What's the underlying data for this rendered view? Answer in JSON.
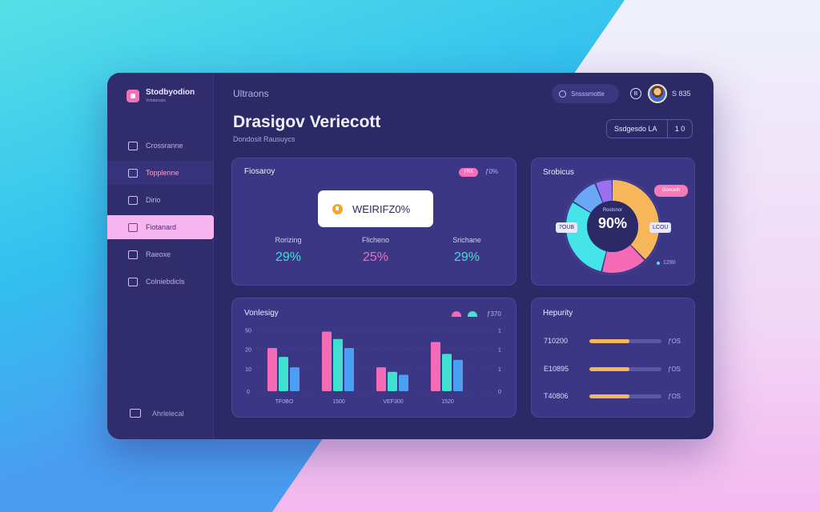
{
  "brand": {
    "name": "Stodbyodion",
    "sub": "Vobdanabs"
  },
  "nav": [
    {
      "label": "Crossranne"
    },
    {
      "label": "Topplenne"
    },
    {
      "label": "Dirio"
    },
    {
      "label": "Fiotanard"
    },
    {
      "label": "Raeoxe"
    },
    {
      "label": "Colniebdicls"
    }
  ],
  "sidebar_footer": {
    "label": "Ahrlelecal"
  },
  "header": {
    "breadcrumb": "Ultraons",
    "title": "Drasigov Veriecott",
    "subtitle": "Dondosit Rausuycs",
    "search_placeholder": "Snsssmotte",
    "bell_glyph": "B",
    "user_name": "S 835",
    "action_label": "Ssdgesdo  LA",
    "action_count": "1 0"
  },
  "overview": {
    "title": "Fiosaroy",
    "badge": "ƒRX",
    "meta": "ƒ0%",
    "pill_text": "WEIRIFZ0%",
    "stats": [
      {
        "label": "Rorizing",
        "value": "29%",
        "color": "#3fe0d0"
      },
      {
        "label": "Flicheno",
        "value": "25%",
        "color": "#f66bb6"
      },
      {
        "label": "Srichane",
        "value": "29%",
        "color": "#3fe0d0"
      }
    ]
  },
  "donut": {
    "title": "Srobicus",
    "center_small": "Rostonor",
    "center_value": "90%",
    "badge": "Goncelh",
    "left_tag": "7OUB",
    "right_tag": "LCOU",
    "legend": "1290",
    "segments": [
      {
        "value": 38,
        "color": "#f7b65a"
      },
      {
        "value": 16,
        "color": "#f66bb6"
      },
      {
        "value": 30,
        "color": "#45e4e8"
      },
      {
        "value": 10,
        "color": "#6aa8f5"
      },
      {
        "value": 6,
        "color": "#9a6ff0"
      }
    ]
  },
  "bars": {
    "title": "Vonlesigy",
    "meta": "ƒ370",
    "legend_colors": [
      "#f66bb6",
      "#45e4c8"
    ],
    "y_left": [
      "50",
      "20",
      "10",
      "0"
    ],
    "y_right": [
      "1",
      "1",
      "1",
      "0"
    ],
    "chart_data": {
      "type": "bar",
      "categories": [
        "TF0BO",
        "1500",
        "VEF300",
        "1520"
      ],
      "series": [
        {
          "values": [
            29,
            40,
            16,
            33
          ],
          "color": "#f66bb6"
        },
        {
          "values": [
            23,
            35,
            13,
            25
          ],
          "color": "#3fe0d0"
        },
        {
          "values": [
            16,
            29,
            11,
            21
          ],
          "color": "#4b9ff2"
        }
      ],
      "ylim": [
        0,
        44
      ]
    }
  },
  "progress": {
    "title": "Hepurity",
    "rows": [
      {
        "label": "710200",
        "value": "ƒOS",
        "fraction": 0.55
      },
      {
        "label": "E10895",
        "value": "ƒOS",
        "fraction": 0.55
      },
      {
        "label": "T40806",
        "value": "ƒOS",
        "fraction": 0.55
      }
    ]
  }
}
